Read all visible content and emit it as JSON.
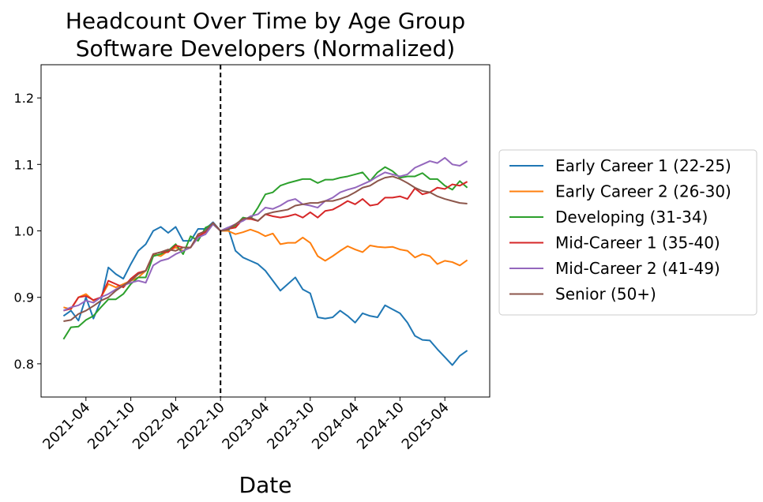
{
  "chart_data": {
    "type": "line",
    "title": "Headcount Over Time by Age Group",
    "subtitle": "Software Developers (Normalized)",
    "x_label": "Date",
    "x": [
      "2021-01",
      "2021-02",
      "2021-03",
      "2021-04",
      "2021-05",
      "2021-06",
      "2021-07",
      "2021-08",
      "2021-09",
      "2021-10",
      "2021-11",
      "2021-12",
      "2022-01",
      "2022-02",
      "2022-03",
      "2022-04",
      "2022-05",
      "2022-06",
      "2022-07",
      "2022-08",
      "2022-09",
      "2022-10",
      "2022-11",
      "2022-12",
      "2023-01",
      "2023-02",
      "2023-03",
      "2023-04",
      "2023-05",
      "2023-06",
      "2023-07",
      "2023-08",
      "2023-09",
      "2023-10",
      "2023-11",
      "2023-12",
      "2024-01",
      "2024-02",
      "2024-03",
      "2024-04",
      "2024-05",
      "2024-06",
      "2024-07",
      "2024-08",
      "2024-09",
      "2024-10",
      "2024-11",
      "2024-12",
      "2025-01",
      "2025-02",
      "2025-03",
      "2025-04",
      "2025-05",
      "2025-06",
      "2025-07"
    ],
    "series": [
      {
        "name": "Early Career 1 (22-25)",
        "color": "#1f77b4",
        "values": [
          0.872,
          0.88,
          0.865,
          0.9,
          0.868,
          0.895,
          0.945,
          0.935,
          0.928,
          0.95,
          0.97,
          0.98,
          1.0,
          1.006,
          0.997,
          1.006,
          0.985,
          0.985,
          1.003,
          1.003,
          1.013,
          1.0,
          1.005,
          0.97,
          0.96,
          0.955,
          0.95,
          0.94,
          0.925,
          0.91,
          0.92,
          0.93,
          0.912,
          0.906,
          0.87,
          0.868,
          0.87,
          0.88,
          0.872,
          0.862,
          0.876,
          0.872,
          0.87,
          0.888,
          0.882,
          0.876,
          0.862,
          0.842,
          0.836,
          0.835,
          0.822,
          0.81,
          0.798,
          0.812,
          0.82
        ]
      },
      {
        "name": "Early Career 2 (26-30)",
        "color": "#ff7f0e",
        "values": [
          0.885,
          0.882,
          0.9,
          0.905,
          0.895,
          0.9,
          0.92,
          0.915,
          0.92,
          0.925,
          0.93,
          0.94,
          0.965,
          0.962,
          0.97,
          0.975,
          0.97,
          0.975,
          0.99,
          1.0,
          1.01,
          1.0,
          1.0,
          0.995,
          0.998,
          1.002,
          0.998,
          0.992,
          0.996,
          0.98,
          0.982,
          0.982,
          0.99,
          0.982,
          0.962,
          0.955,
          0.962,
          0.97,
          0.977,
          0.972,
          0.968,
          0.978,
          0.976,
          0.975,
          0.976,
          0.972,
          0.97,
          0.96,
          0.965,
          0.962,
          0.95,
          0.955,
          0.953,
          0.948,
          0.956
        ]
      },
      {
        "name": "Developing (31-34)",
        "color": "#2ca02c",
        "values": [
          0.837,
          0.855,
          0.856,
          0.866,
          0.872,
          0.885,
          0.897,
          0.897,
          0.905,
          0.92,
          0.93,
          0.93,
          0.962,
          0.965,
          0.97,
          0.98,
          0.965,
          0.992,
          0.985,
          1.005,
          1.01,
          1.0,
          1.002,
          1.008,
          1.02,
          1.018,
          1.035,
          1.055,
          1.058,
          1.068,
          1.072,
          1.075,
          1.078,
          1.078,
          1.072,
          1.077,
          1.077,
          1.08,
          1.082,
          1.085,
          1.088,
          1.075,
          1.088,
          1.096,
          1.09,
          1.08,
          1.082,
          1.082,
          1.087,
          1.078,
          1.078,
          1.068,
          1.062,
          1.075,
          1.065
        ]
      },
      {
        "name": "Mid-Career 1 (35-40)",
        "color": "#d62728",
        "values": [
          0.88,
          0.883,
          0.9,
          0.902,
          0.896,
          0.9,
          0.925,
          0.92,
          0.915,
          0.928,
          0.937,
          0.94,
          0.965,
          0.968,
          0.968,
          0.978,
          0.975,
          0.975,
          0.992,
          0.998,
          1.012,
          1.0,
          1.003,
          1.005,
          1.018,
          1.018,
          1.015,
          1.025,
          1.022,
          1.02,
          1.022,
          1.025,
          1.02,
          1.028,
          1.02,
          1.03,
          1.032,
          1.038,
          1.045,
          1.04,
          1.048,
          1.038,
          1.04,
          1.05,
          1.05,
          1.052,
          1.048,
          1.064,
          1.055,
          1.058,
          1.065,
          1.063,
          1.07,
          1.068,
          1.074
        ]
      },
      {
        "name": "Mid-Career 2 (41-49)",
        "color": "#9467bd",
        "values": [
          0.88,
          0.885,
          0.888,
          0.895,
          0.892,
          0.9,
          0.905,
          0.912,
          0.918,
          0.922,
          0.925,
          0.922,
          0.948,
          0.955,
          0.958,
          0.965,
          0.97,
          0.975,
          0.99,
          0.995,
          1.01,
          1.0,
          1.005,
          1.01,
          1.015,
          1.022,
          1.025,
          1.035,
          1.033,
          1.038,
          1.045,
          1.048,
          1.04,
          1.038,
          1.035,
          1.045,
          1.05,
          1.058,
          1.062,
          1.065,
          1.07,
          1.075,
          1.082,
          1.088,
          1.085,
          1.082,
          1.085,
          1.095,
          1.1,
          1.105,
          1.102,
          1.11,
          1.1,
          1.098,
          1.105
        ]
      },
      {
        "name": "Senior (50+)",
        "color": "#8c564b",
        "values": [
          0.864,
          0.866,
          0.875,
          0.88,
          0.887,
          0.895,
          0.9,
          0.91,
          0.918,
          0.925,
          0.935,
          0.94,
          0.965,
          0.968,
          0.972,
          0.97,
          0.975,
          0.975,
          0.995,
          1.0,
          1.012,
          1.0,
          1.002,
          1.01,
          1.018,
          1.02,
          1.015,
          1.025,
          1.028,
          1.03,
          1.032,
          1.038,
          1.04,
          1.042,
          1.042,
          1.045,
          1.045,
          1.048,
          1.052,
          1.058,
          1.065,
          1.068,
          1.075,
          1.08,
          1.082,
          1.078,
          1.072,
          1.065,
          1.06,
          1.058,
          1.052,
          1.048,
          1.045,
          1.042,
          1.041
        ]
      }
    ],
    "xlim": [
      "2020-10",
      "2025-10"
    ],
    "xticks": [
      "2021-04",
      "2021-10",
      "2022-04",
      "2022-10",
      "2023-04",
      "2023-10",
      "2024-04",
      "2024-10",
      "2025-04"
    ],
    "ylim": [
      0.75,
      1.25
    ],
    "yticks": [
      0.8,
      0.9,
      {
        "value": 1.0,
        "label": "1.0"
      },
      1.1,
      1.2
    ],
    "vline": "2022-10",
    "grid": false,
    "legend": "outside right"
  }
}
